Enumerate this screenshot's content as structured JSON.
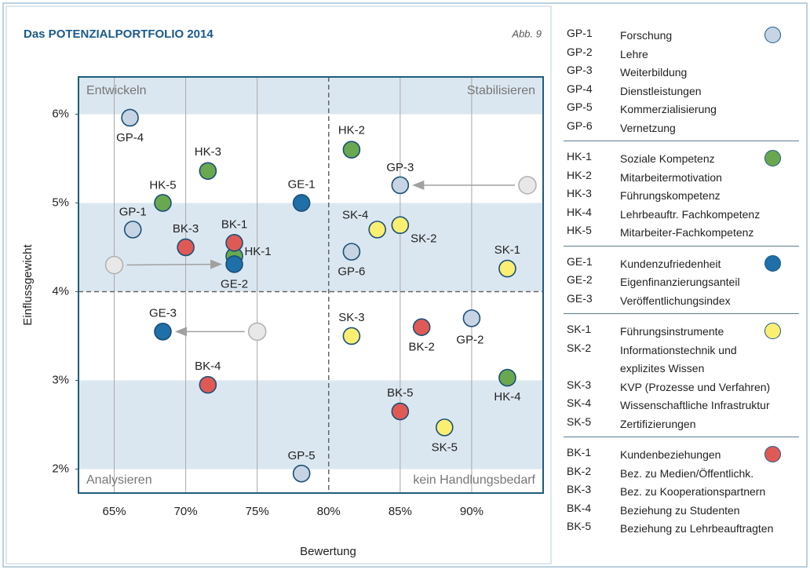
{
  "chart_data": {
    "type": "scatter",
    "title": "Das POTENZIALPORTFOLIO 2014",
    "figure_label": "Abb. 9",
    "x_label": "Bewertung",
    "y_label": "Einflussgewicht",
    "quadrants": {
      "top_left": "Entwickeln",
      "top_right": "Stabilisieren",
      "bottom_left": "Analysieren",
      "bottom_right": "kein Handlungsbedarf"
    },
    "xlim": [
      62.5,
      95
    ],
    "ylim": [
      1.73,
      6.42
    ],
    "xticks": [
      {
        "value": 65,
        "label": "65%"
      },
      {
        "value": 70,
        "label": "70%"
      },
      {
        "value": 75,
        "label": "75%"
      },
      {
        "value": 80,
        "label": "80%"
      },
      {
        "value": 85,
        "label": "85%"
      },
      {
        "value": 90,
        "label": "90%"
      }
    ],
    "yticks": [
      {
        "value": 2,
        "label": "2%"
      },
      {
        "value": 3,
        "label": "3%"
      },
      {
        "value": 4,
        "label": "4%"
      },
      {
        "value": 5,
        "label": "5%"
      },
      {
        "value": 6,
        "label": "6%"
      }
    ],
    "x_divider": 80,
    "y_divider": 4,
    "series": [
      {
        "color": "#c6d4e3",
        "points": [
          {
            "label": "GP-1",
            "x": 66.3,
            "y": 4.7
          },
          {
            "label": "GP-2",
            "x": 90,
            "y": 3.7
          },
          {
            "label": "GP-3",
            "x": 85,
            "y": 5.2
          },
          {
            "label": "GP-4",
            "x": 66.1,
            "y": 5.96
          },
          {
            "label": "GP-5",
            "x": 78.1,
            "y": 1.95
          },
          {
            "label": "GP-6",
            "x": 81.6,
            "y": 4.45
          }
        ],
        "legend": [
          {
            "code": "GP-1",
            "name": "Forschung"
          },
          {
            "code": "GP-2",
            "name": "Lehre"
          },
          {
            "code": "GP-3",
            "name": "Weiterbildung"
          },
          {
            "code": "GP-4",
            "name": "Dienstleistungen"
          },
          {
            "code": "GP-5",
            "name": "Kommerzialisierung"
          },
          {
            "code": "GP-6",
            "name": "Vernetzung"
          }
        ]
      },
      {
        "color": "#6aa84f",
        "points": [
          {
            "label": "HK-1",
            "x": 73.4,
            "y": 4.4
          },
          {
            "label": "HK-2",
            "x": 81.6,
            "y": 5.6
          },
          {
            "label": "HK-3",
            "x": 71.55,
            "y": 5.36
          },
          {
            "label": "HK-4",
            "x": 92.5,
            "y": 3.03
          },
          {
            "label": "HK-5",
            "x": 68.4,
            "y": 5.0
          }
        ],
        "legend": [
          {
            "code": "HK-1",
            "name": "Soziale Kompetenz"
          },
          {
            "code": "HK-2",
            "name": "Mitarbeitermotivation"
          },
          {
            "code": "HK-3",
            "name": "Führungskompetenz"
          },
          {
            "code": "HK-4",
            "name": "Lehrbeauftr. Fachkompetenz"
          },
          {
            "code": "HK-5",
            "name": "Mitarbeiter-Fachkompetenz"
          }
        ]
      },
      {
        "color": "#1f6fa8",
        "points": [
          {
            "label": "GE-1",
            "x": 78.1,
            "y": 5.0
          },
          {
            "label": "GE-2",
            "x": 73.4,
            "y": 4.31
          },
          {
            "label": "GE-3",
            "x": 68.4,
            "y": 3.55
          }
        ],
        "legend": [
          {
            "code": "GE-1",
            "name": "Kundenzufriedenheit"
          },
          {
            "code": "GE-2",
            "name": "Eigenfinanzierungsanteil"
          },
          {
            "code": "GE-3",
            "name": "Veröffentlichungsindex"
          }
        ]
      },
      {
        "color": "#fbef72",
        "points": [
          {
            "label": "SK-1",
            "x": 92.5,
            "y": 4.26
          },
          {
            "label": "SK-2",
            "x": 85,
            "y": 4.75
          },
          {
            "label": "SK-3",
            "x": 81.6,
            "y": 3.5
          },
          {
            "label": "SK-4",
            "x": 83.4,
            "y": 4.7
          },
          {
            "label": "SK-5",
            "x": 88.1,
            "y": 2.47
          }
        ],
        "legend": [
          {
            "code": "SK-1",
            "name": "Führungsinstrumente"
          },
          {
            "code": "SK-2",
            "name": "Informationstechnik und\nexplizites Wissen"
          },
          {
            "code": "SK-3",
            "name": "KVP (Prozesse und Verfahren)"
          },
          {
            "code": "SK-4",
            "name": "Wissenschaftliche Infrastruktur"
          },
          {
            "code": "SK-5",
            "name": "Zertifizierungen"
          }
        ]
      },
      {
        "color": "#e05a55",
        "points": [
          {
            "label": "BK-1",
            "x": 73.4,
            "y": 4.55
          },
          {
            "label": "BK-2",
            "x": 86.5,
            "y": 3.6
          },
          {
            "label": "BK-3",
            "x": 70,
            "y": 4.5
          },
          {
            "label": "BK-4",
            "x": 71.55,
            "y": 2.95
          },
          {
            "label": "BK-5",
            "x": 85,
            "y": 2.65
          }
        ],
        "legend": [
          {
            "code": "BK-1",
            "name": "Kundenbeziehungen"
          },
          {
            "code": "BK-2",
            "name": "Bez. zu Medien/Öffentlichk."
          },
          {
            "code": "BK-3",
            "name": "Bez. zu Kooperationspartnern"
          },
          {
            "code": "BK-4",
            "name": "Beziehung zu Studenten"
          },
          {
            "code": "BK-5",
            "name": "Beziehung zu Lehrbeauftragten"
          }
        ]
      }
    ],
    "previous": [
      {
        "x": 65,
        "y": 4.3,
        "to": "GE-2"
      },
      {
        "x": 93.9,
        "y": 5.2,
        "to": "GP-3"
      },
      {
        "x": 75,
        "y": 3.55,
        "to": "GE-3"
      }
    ]
  }
}
